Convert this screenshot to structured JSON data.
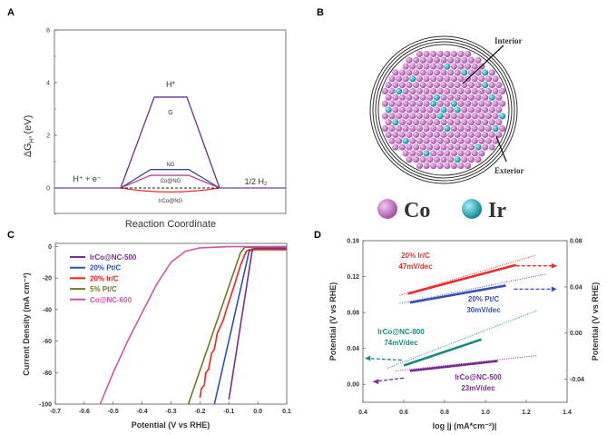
{
  "chart_data": [
    {
      "panel": "A",
      "type": "line",
      "title": "",
      "xlabel": "Reaction Coordinate",
      "ylabel": "ΔG",
      "ylabel_sub": "H*",
      "ylabel_unit": "(eV)",
      "ylim": [
        -1,
        6
      ],
      "yticks": [
        "0",
        "2",
        "4",
        "6"
      ],
      "state_labels": {
        "initial": "H⁺ + e⁻",
        "intermediate": "H*",
        "final": "1/2 H₂"
      },
      "series": [
        {
          "name": "G",
          "value": 3.45,
          "color": "#6a2f8a"
        },
        {
          "name": "NG",
          "value": 0.7,
          "color": "#3a4a9a"
        },
        {
          "name": "Co@NG",
          "value": 0.48,
          "color": "#b04a9a"
        },
        {
          "name": "IrCo@NG",
          "value": -0.15,
          "color": "#e03030"
        }
      ],
      "reference_line": {
        "value": 0,
        "style": "dashed"
      }
    },
    {
      "panel": "C",
      "type": "line",
      "xlabel": "Potential (V vs RHE)",
      "ylabel": "Current Density (mA cm⁻²)",
      "xlim": [
        -0.7,
        0.1
      ],
      "ylim": [
        -100,
        2
      ],
      "xticks": [
        "-0.7",
        "-0.6",
        "-0.5",
        "-0.4",
        "-0.3",
        "-0.2",
        "-0.1",
        "0.0",
        "0.1"
      ],
      "yticks": [
        "0",
        "-20",
        "-40",
        "-60",
        "-80",
        "-100"
      ],
      "legend": "top-left",
      "series": [
        {
          "name": "IrCo@NC-500",
          "color": "#7b2d8e",
          "points": [
            [
              -0.1,
              -97
            ],
            [
              -0.02,
              -3
            ],
            [
              -0.01,
              -1
            ],
            [
              0.1,
              -1
            ]
          ]
        },
        {
          "name": "20% Pt/C",
          "color": "#3050b0",
          "points": [
            [
              -0.15,
              -100
            ],
            [
              -0.03,
              -3
            ],
            [
              -0.02,
              -1.5
            ],
            [
              0.1,
              -1.5
            ]
          ]
        },
        {
          "name": "20% Ir/C",
          "color": "#ee2020",
          "points": [
            [
              -0.2,
              -96
            ],
            [
              -0.195,
              -90
            ],
            [
              -0.185,
              -88
            ],
            [
              -0.18,
              -80
            ],
            [
              -0.17,
              -78
            ],
            [
              -0.16,
              -68
            ],
            [
              -0.15,
              -65
            ],
            [
              -0.14,
              -55
            ],
            [
              -0.12,
              -47
            ],
            [
              -0.1,
              -35
            ],
            [
              -0.08,
              -24
            ],
            [
              -0.06,
              -12
            ],
            [
              -0.04,
              -3
            ],
            [
              -0.03,
              -2
            ],
            [
              0.1,
              -2
            ]
          ]
        },
        {
          "name": "5% Pt/C",
          "color": "#6b7a1f",
          "points": [
            [
              -0.24,
              -100
            ],
            [
              -0.06,
              -4
            ],
            [
              -0.045,
              -0.5
            ],
            [
              0.1,
              0
            ]
          ]
        },
        {
          "name": "Co@NC-600",
          "color": "#cc55aa",
          "points": [
            [
              -0.545,
              -100
            ],
            [
              -0.5,
              -80
            ],
            [
              -0.45,
              -60
            ],
            [
              -0.4,
              -42
            ],
            [
              -0.35,
              -24
            ],
            [
              -0.3,
              -10
            ],
            [
              -0.25,
              -3
            ],
            [
              -0.2,
              -0.8
            ],
            [
              -0.1,
              -0.1
            ],
            [
              0.1,
              0
            ]
          ]
        }
      ]
    },
    {
      "panel": "D",
      "type": "line",
      "xlabel": "log |j (mA*cm⁻²)|",
      "ylabel": "Potential (V vs RHE)",
      "ylabel_right": "Potential (V vs RHE)",
      "xlim": [
        0.4,
        1.4
      ],
      "ylim": [
        -0.02,
        0.16
      ],
      "ylim_right": [
        -0.06,
        0.08
      ],
      "xticks": [
        "0.4",
        "0.6",
        "0.8",
        "1.0",
        "1.2",
        "1.4"
      ],
      "yticks": [
        "0.00",
        "0.04",
        "0.08",
        "0.12",
        "0.16"
      ],
      "yticks_right": [
        "-0.04",
        "0.00",
        "0.04",
        "0.08"
      ],
      "series": [
        {
          "name": "20% Ir/C",
          "slope": "47mV/dec",
          "color": "#ee2a2a",
          "solid": [
            [
              0.62,
              0.101
            ],
            [
              1.15,
              0.133
            ]
          ],
          "fit": [
            [
              0.58,
              0.099
            ],
            [
              1.25,
              0.144
            ]
          ],
          "arrow": [
            [
              1.15,
              0.132
            ],
            [
              1.35,
              0.132
            ]
          ]
        },
        {
          "name": "20% Pt/C",
          "slope": "30mV/dec",
          "color": "#3a4fb0",
          "solid": [
            [
              0.63,
              0.091
            ],
            [
              1.1,
              0.11
            ]
          ],
          "fit": [
            [
              0.58,
              0.09
            ],
            [
              1.3,
              0.123
            ]
          ],
          "arrow": [
            [
              1.14,
              0.106
            ],
            [
              1.35,
              0.106
            ]
          ]
        },
        {
          "name": "IrCo@NC-800",
          "slope": "74mV/dec",
          "color": "#1a8a80",
          "solid": [
            [
              0.6,
              0.021
            ],
            [
              0.98,
              0.05
            ]
          ],
          "fit": [
            [
              0.52,
              0.018
            ],
            [
              1.25,
              0.082
            ]
          ],
          "arrow": [
            [
              0.59,
              0.027
            ],
            [
              0.41,
              0.029
            ]
          ]
        },
        {
          "name": "IrCo@NC-500",
          "slope": "23mV/dec",
          "color": "#7a2a90",
          "solid": [
            [
              0.63,
              0.015
            ],
            [
              1.06,
              0.026
            ]
          ],
          "fit": [
            [
              0.56,
              0.015
            ],
            [
              1.25,
              0.032
            ]
          ],
          "arrow": [
            [
              0.6,
              0.007
            ],
            [
              0.45,
              0.003
            ]
          ]
        }
      ]
    }
  ],
  "panels": {
    "a": "A",
    "b": "B",
    "c": "C",
    "d": "D"
  },
  "schematic": {
    "interior_label": "Interior",
    "exterior_label": "Exterior",
    "legend": [
      {
        "name": "Co",
        "color": "#c070c0"
      },
      {
        "name": "Ir",
        "color": "#20a0b8"
      }
    ]
  }
}
